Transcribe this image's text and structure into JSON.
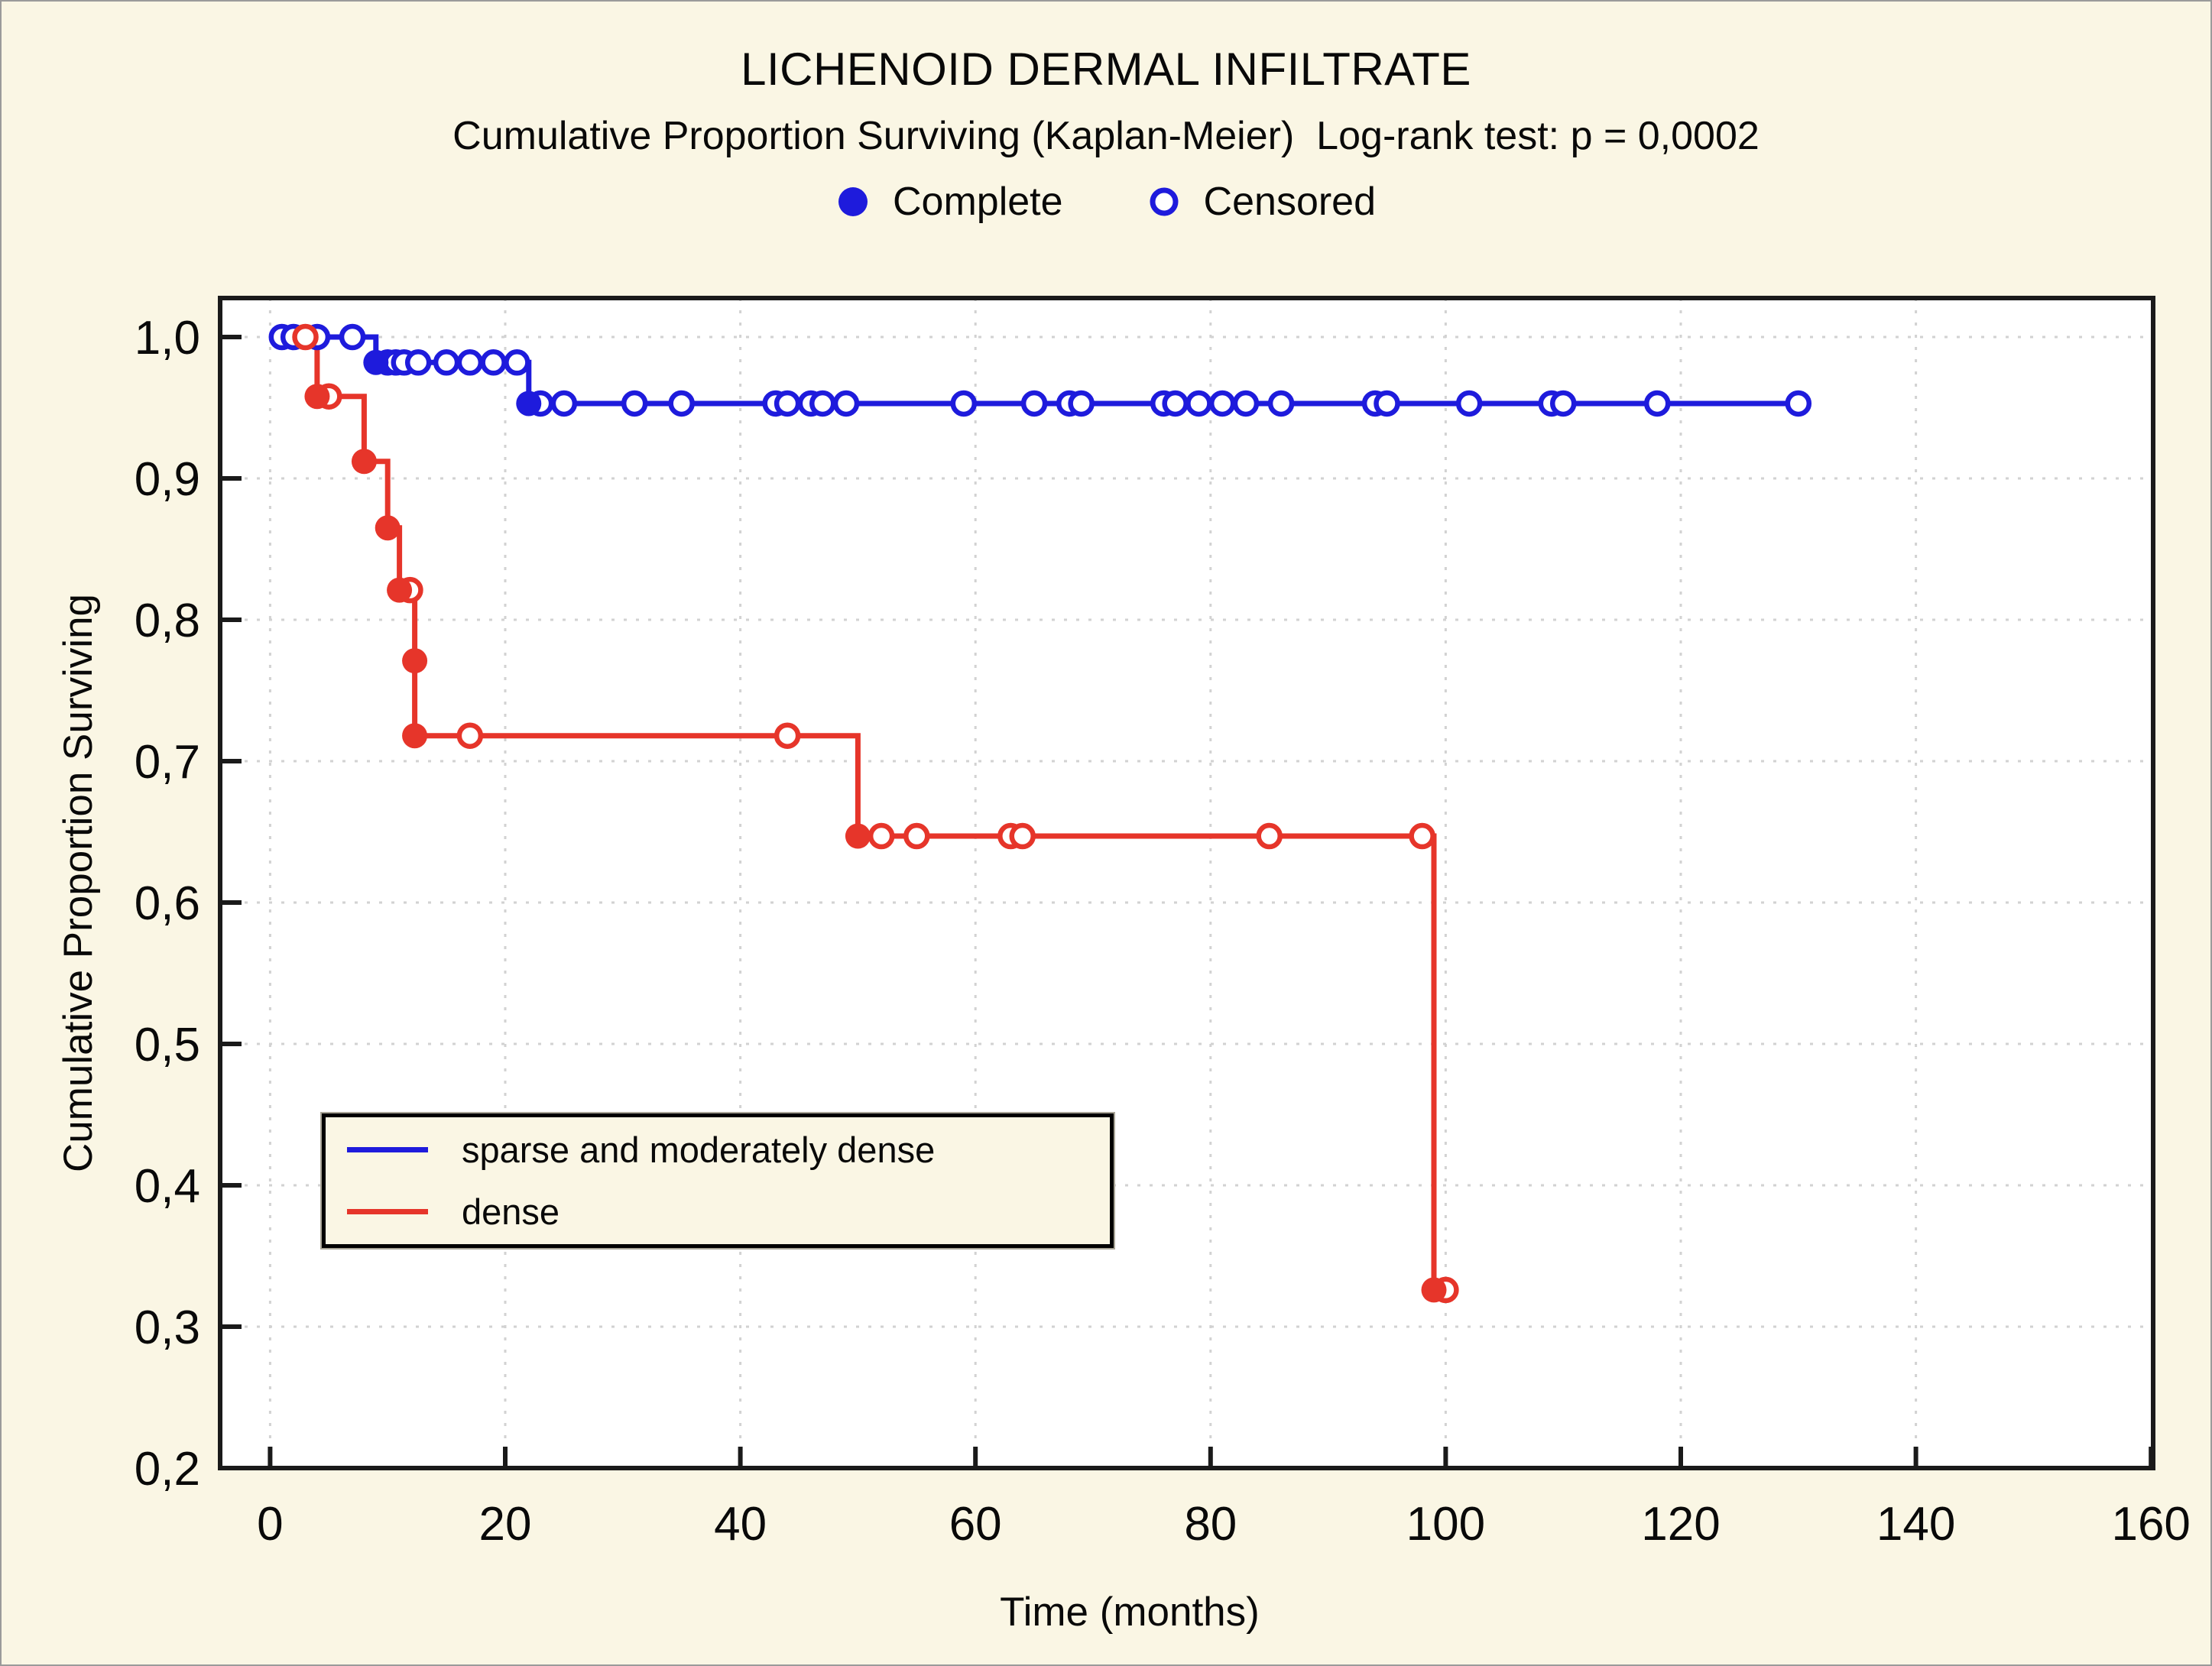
{
  "page": {
    "title": "LICHENOID DERMAL INFILTRATE",
    "subtitle": "Cumulative Proportion Surviving (Kaplan-Meier)  Log-rank test: p = 0,0002",
    "background_color": "#FAF6E4",
    "plot_background_color": "#FFFFFF",
    "grid_color": "#d2d2d2",
    "axis_color": "#1a1a1a"
  },
  "marker_legend": {
    "complete_label": "Complete",
    "censored_label": "Censored",
    "marker_color": "#1E1BDC"
  },
  "chart_data": {
    "type": "line",
    "subtype": "kaplan-meier-step",
    "title": "LICHENOID DERMAL INFILTRATE",
    "subtitle": "Cumulative Proportion Surviving (Kaplan-Meier)  Log-rank test: p = 0,0002",
    "xlabel": "Time (months)",
    "ylabel": "Cumulative Proportion Surviving",
    "xlim": [
      -4.3,
      160.3
    ],
    "ylim": [
      0.2,
      1.028
    ],
    "grid": true,
    "decimal_style": "comma",
    "legend_position": "inside-lower-left",
    "x_ticks": [
      {
        "v": 0,
        "label": "0"
      },
      {
        "v": 20,
        "label": "20"
      },
      {
        "v": 40,
        "label": "40"
      },
      {
        "v": 60,
        "label": "60"
      },
      {
        "v": 80,
        "label": "80"
      },
      {
        "v": 100,
        "label": "100"
      },
      {
        "v": 120,
        "label": "120"
      },
      {
        "v": 140,
        "label": "140"
      },
      {
        "v": 160,
        "label": "160"
      }
    ],
    "y_ticks": [
      {
        "v": 1.0,
        "label": "1,0"
      },
      {
        "v": 0.9,
        "label": "0,9"
      },
      {
        "v": 0.8,
        "label": "0,8"
      },
      {
        "v": 0.7,
        "label": "0,7"
      },
      {
        "v": 0.6,
        "label": "0,6"
      },
      {
        "v": 0.5,
        "label": "0,5"
      },
      {
        "v": 0.4,
        "label": "0,4"
      },
      {
        "v": 0.3,
        "label": "0,3"
      },
      {
        "v": 0.2,
        "label": "0,2"
      }
    ],
    "series": [
      {
        "name": "sparse and moderately dense",
        "color": "#1E1BDC",
        "steps": [
          [
            0,
            1.0
          ],
          [
            9,
            1.0
          ],
          [
            9,
            0.982
          ],
          [
            22,
            0.982
          ],
          [
            22,
            0.953
          ],
          [
            130,
            0.953
          ]
        ],
        "complete_points": [
          [
            9,
            0.982
          ],
          [
            22,
            0.953
          ]
        ],
        "censored_points": [
          [
            1,
            1.0
          ],
          [
            2,
            1.0
          ],
          [
            4,
            1.0
          ],
          [
            7,
            1.0
          ],
          [
            10,
            0.982
          ],
          [
            10.7,
            0.982
          ],
          [
            11.4,
            0.982
          ],
          [
            12.6,
            0.982
          ],
          [
            15,
            0.982
          ],
          [
            17,
            0.982
          ],
          [
            19,
            0.982
          ],
          [
            21,
            0.982
          ],
          [
            23,
            0.953
          ],
          [
            25,
            0.953
          ],
          [
            31,
            0.953
          ],
          [
            35,
            0.953
          ],
          [
            43,
            0.953
          ],
          [
            44,
            0.953
          ],
          [
            46,
            0.953
          ],
          [
            47,
            0.953
          ],
          [
            49,
            0.953
          ],
          [
            59,
            0.953
          ],
          [
            65,
            0.953
          ],
          [
            68,
            0.953
          ],
          [
            69,
            0.953
          ],
          [
            76,
            0.953
          ],
          [
            77,
            0.953
          ],
          [
            79,
            0.953
          ],
          [
            81,
            0.953
          ],
          [
            83,
            0.953
          ],
          [
            86,
            0.953
          ],
          [
            94,
            0.953
          ],
          [
            95,
            0.953
          ],
          [
            102,
            0.953
          ],
          [
            109,
            0.953
          ],
          [
            110,
            0.953
          ],
          [
            118,
            0.953
          ],
          [
            130,
            0.953
          ]
        ]
      },
      {
        "name": "dense",
        "color": "#E6352A",
        "steps": [
          [
            0,
            1.0
          ],
          [
            4,
            1.0
          ],
          [
            4,
            0.958
          ],
          [
            8,
            0.958
          ],
          [
            8,
            0.912
          ],
          [
            10,
            0.912
          ],
          [
            10,
            0.865
          ],
          [
            11,
            0.865
          ],
          [
            11,
            0.821
          ],
          [
            12.3,
            0.821
          ],
          [
            12.3,
            0.718
          ],
          [
            50,
            0.718
          ],
          [
            50,
            0.647
          ],
          [
            99,
            0.647
          ],
          [
            99,
            0.326
          ],
          [
            100,
            0.326
          ]
        ],
        "complete_points": [
          [
            4,
            0.958
          ],
          [
            8,
            0.912
          ],
          [
            10,
            0.865
          ],
          [
            11,
            0.821
          ],
          [
            12.3,
            0.771
          ],
          [
            12.3,
            0.718
          ],
          [
            50,
            0.647
          ],
          [
            99,
            0.326
          ]
        ],
        "censored_points": [
          [
            3,
            1.0
          ],
          [
            5,
            0.958
          ],
          [
            11.9,
            0.821
          ],
          [
            17,
            0.718
          ],
          [
            44,
            0.718
          ],
          [
            52,
            0.647
          ],
          [
            55,
            0.647
          ],
          [
            63,
            0.647
          ],
          [
            64,
            0.647
          ],
          [
            85,
            0.647
          ],
          [
            98,
            0.647
          ],
          [
            100,
            0.326
          ]
        ]
      }
    ],
    "inner_legend": [
      {
        "label": "sparse and moderately dense",
        "color": "#1E1BDC"
      },
      {
        "label": "dense",
        "color": "#E6352A"
      }
    ]
  }
}
